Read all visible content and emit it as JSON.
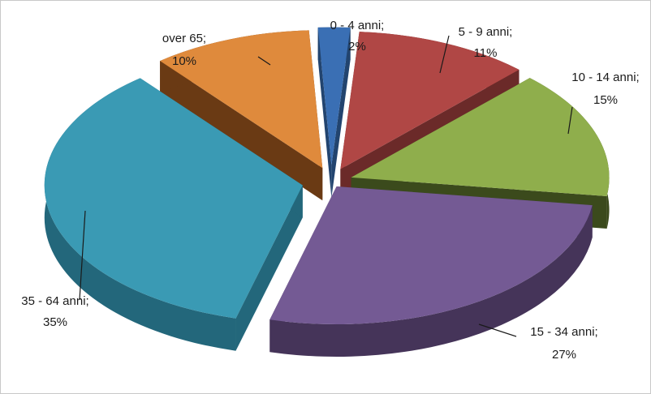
{
  "chart_data": {
    "type": "pie",
    "style": "3d-exploded",
    "title": "",
    "legend": "none",
    "slices": [
      {
        "label": "0 - 4 anni",
        "value": 2,
        "display": "2%",
        "color": "#3a6fb4",
        "side": "#22446f"
      },
      {
        "label": "5 - 9 anni",
        "value": 11,
        "display": "11%",
        "color": "#b04745",
        "side": "#6b2a29"
      },
      {
        "label": "10 - 14 anni",
        "value": 15,
        "display": "15%",
        "color": "#8fae4c",
        "side": "#3b4a1c"
      },
      {
        "label": "15 - 34 anni",
        "value": 27,
        "display": "27%",
        "color": "#745a94",
        "side": "#453459"
      },
      {
        "label": "35 - 64 anni",
        "value": 35,
        "display": "35%",
        "color": "#3a9ab4",
        "side": "#23677b"
      },
      {
        "label": "over 65",
        "value": 10,
        "display": "10%",
        "color": "#df8a3c",
        "side": "#6a3a14"
      }
    ]
  }
}
